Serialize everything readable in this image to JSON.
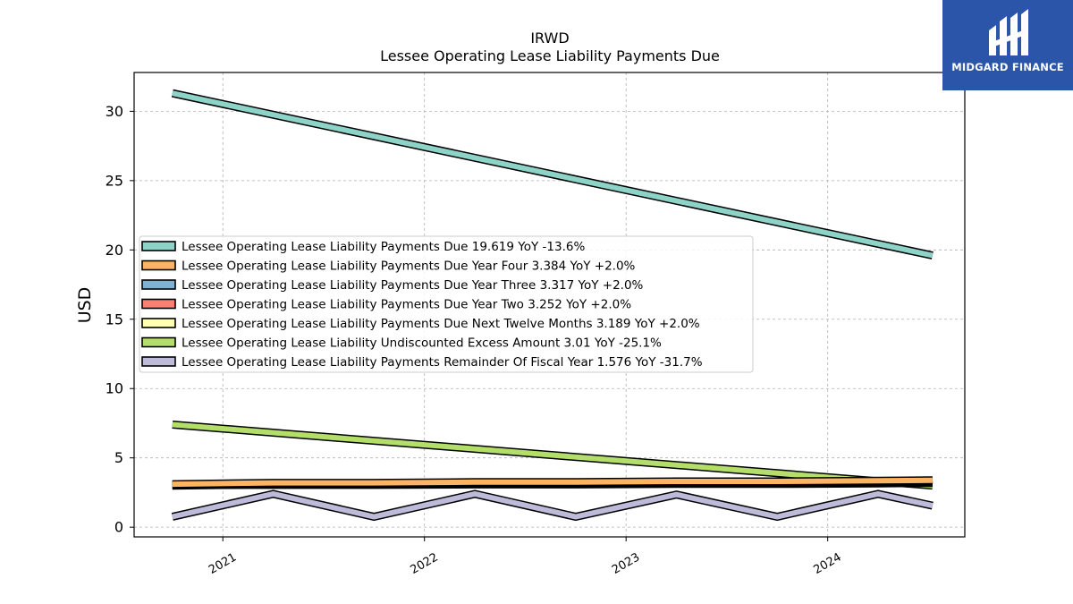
{
  "brand": {
    "name": "MIDGARD FINANCE",
    "bg_color": "#2a55a8"
  },
  "chart_data": {
    "type": "line",
    "title": "IRWD",
    "subtitle": "Lessee Operating Lease Liability Payments Due",
    "ylabel": "USD",
    "xlabel": "",
    "ylim": [
      -0.7,
      32.8
    ],
    "xlim": [
      2020.56,
      2024.68
    ],
    "y_ticks": [
      0,
      5,
      10,
      15,
      20,
      25,
      30
    ],
    "x_ticks": [
      2021,
      2022,
      2023,
      2024
    ],
    "x_tick_labels": [
      "2021",
      "2022",
      "2023",
      "2024"
    ],
    "grid": true,
    "legend_position": "center-left",
    "series": [
      {
        "name": "Lessee Operating Lease Liability Payments Due",
        "legend_label": "Lessee Operating Lease Liability Payments Due  19.619 YoY -13.6%",
        "color": "#8dd3c7",
        "x": [
          2020.75,
          2024.52
        ],
        "y": [
          31.3,
          19.6
        ]
      },
      {
        "name": "Lessee Operating Lease Liability Payments Due Year Four",
        "legend_label": "Lessee Operating Lease Liability Payments Due Year Four  3.384 YoY +2.0%",
        "color": "#fdb462",
        "x": [
          2020.75,
          2021.25,
          2021.75,
          2022.25,
          2022.75,
          2023.25,
          2023.75,
          2024.25,
          2024.52
        ],
        "y": [
          3.1,
          3.2,
          3.2,
          3.25,
          3.25,
          3.3,
          3.3,
          3.35,
          3.38
        ]
      },
      {
        "name": "Lessee Operating Lease Liability Payments Due Year Three",
        "legend_label": "Lessee Operating Lease Liability Payments Due Year Three  3.317 YoY +2.0%",
        "color": "#80b1d3",
        "x": [
          2020.75,
          2021.25,
          2021.75,
          2022.25,
          2022.75,
          2023.25,
          2023.75,
          2024.25,
          2024.52
        ],
        "y": [
          3.05,
          3.15,
          3.15,
          3.2,
          3.2,
          3.25,
          3.25,
          3.3,
          3.32
        ]
      },
      {
        "name": "Lessee Operating Lease Liability Payments Due Year Two",
        "legend_label": "Lessee Operating Lease Liability Payments Due Year Two  3.252 YoY +2.0%",
        "color": "#fb8072",
        "x": [
          2020.75,
          2021.25,
          2021.75,
          2022.25,
          2022.75,
          2023.25,
          2023.75,
          2024.25,
          2024.52
        ],
        "y": [
          3.0,
          3.1,
          3.1,
          3.15,
          3.15,
          3.2,
          3.2,
          3.23,
          3.25
        ]
      },
      {
        "name": "Lessee Operating Lease Liability Payments Due Next Twelve Months",
        "legend_label": "Lessee Operating Lease Liability Payments Due Next Twelve Months  3.189 YoY +2.0%",
        "color": "#ffffb3",
        "x": [
          2020.75,
          2021.25,
          2021.75,
          2022.25,
          2022.75,
          2023.25,
          2023.75,
          2024.25,
          2024.52
        ],
        "y": [
          3.05,
          3.05,
          3.05,
          3.08,
          3.08,
          3.12,
          3.12,
          3.16,
          3.19
        ]
      },
      {
        "name": "Lessee Operating Lease Liability Undiscounted Excess Amount",
        "legend_label": "Lessee Operating Lease Liability Undiscounted Excess Amount  3.01 YoY -25.1%",
        "color": "#b3de69",
        "x": [
          2020.75,
          2024.52
        ],
        "y": [
          7.4,
          3.0
        ]
      },
      {
        "name": "Lessee Operating Lease Liability Payments Remainder Of Fiscal Year",
        "legend_label": "Lessee Operating Lease Liability Payments Remainder Of Fiscal Year  1.576 YoY -31.7%",
        "color": "#bebada",
        "x": [
          2020.75,
          2021.25,
          2021.75,
          2022.25,
          2022.75,
          2023.25,
          2023.75,
          2024.25,
          2024.52
        ],
        "y": [
          0.75,
          2.4,
          0.75,
          2.4,
          0.75,
          2.35,
          0.75,
          2.4,
          1.55
        ]
      }
    ]
  }
}
